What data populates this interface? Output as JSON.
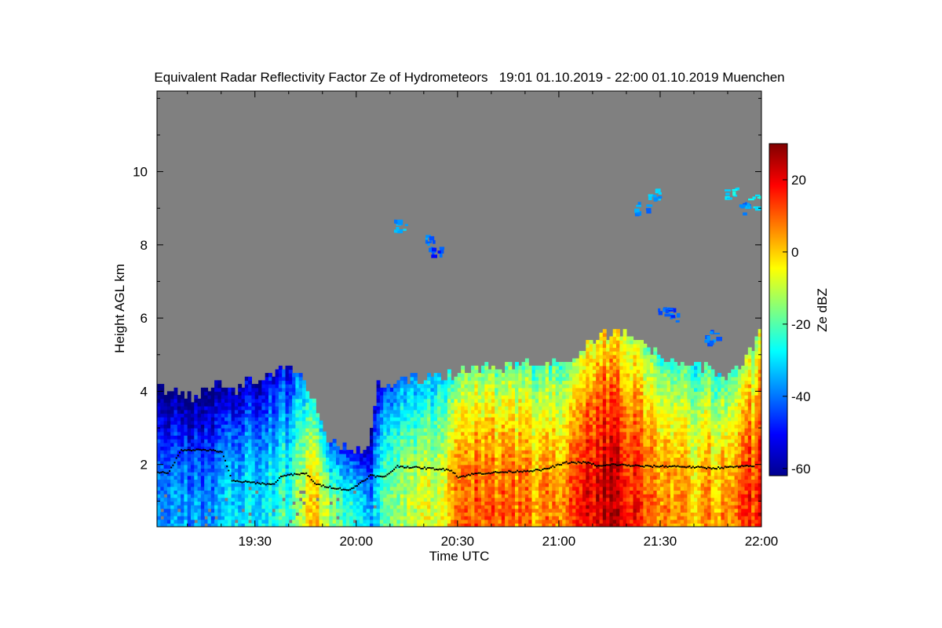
{
  "chart_data": {
    "type": "heatmap",
    "title": "Equivalent Radar Reflectivity Factor Ze of Hydrometeors   19:01 01.10.2019 - 22:00 01.10.2019 Muenchen",
    "xlabel": "Time UTC",
    "ylabel": "Height AGL km",
    "x_tick_labels": [
      "19:30",
      "20:00",
      "20:30",
      "21:00",
      "21:30",
      "22:00"
    ],
    "x_tick_minutes": [
      1170,
      1200,
      1230,
      1260,
      1290,
      1320
    ],
    "xlim_minutes": [
      1141,
      1320
    ],
    "y_ticks": [
      2,
      4,
      6,
      8,
      10
    ],
    "ylim": [
      0.3,
      12.2
    ],
    "grid": false,
    "missing_value_color": "#808080",
    "colorbar": {
      "label": "Ze dBZ",
      "ticks": [
        20,
        0,
        -20,
        -40,
        -60
      ],
      "range": [
        -62,
        30
      ],
      "colormap": "jet"
    },
    "echo_top_km": [
      {
        "t": 1141,
        "h": 4.1
      },
      {
        "t": 1150,
        "h": 3.8
      },
      {
        "t": 1158,
        "h": 4.1
      },
      {
        "t": 1165,
        "h": 4.0
      },
      {
        "t": 1172,
        "h": 4.4
      },
      {
        "t": 1180,
        "h": 4.5
      },
      {
        "t": 1184,
        "h": 4.4
      },
      {
        "t": 1188,
        "h": 3.5
      },
      {
        "t": 1192,
        "h": 2.6
      },
      {
        "t": 1200,
        "h": 2.3
      },
      {
        "t": 1204,
        "h": 2.5
      },
      {
        "t": 1206,
        "h": 4.1
      },
      {
        "t": 1210,
        "h": 4.2
      },
      {
        "t": 1220,
        "h": 4.3
      },
      {
        "t": 1232,
        "h": 4.5
      },
      {
        "t": 1245,
        "h": 4.6
      },
      {
        "t": 1255,
        "h": 4.7
      },
      {
        "t": 1264,
        "h": 4.7
      },
      {
        "t": 1270,
        "h": 5.4
      },
      {
        "t": 1278,
        "h": 5.6
      },
      {
        "t": 1286,
        "h": 5.2
      },
      {
        "t": 1294,
        "h": 4.8
      },
      {
        "t": 1302,
        "h": 4.6
      },
      {
        "t": 1310,
        "h": 4.4
      },
      {
        "t": 1316,
        "h": 4.9
      },
      {
        "t": 1320,
        "h": 5.8
      }
    ],
    "reflectivity_dbz_by_time": [
      {
        "t": 1141,
        "ze": -35
      },
      {
        "t": 1155,
        "ze": -38
      },
      {
        "t": 1165,
        "ze": -30
      },
      {
        "t": 1175,
        "ze": -25
      },
      {
        "t": 1180,
        "ze": -22
      },
      {
        "t": 1184,
        "ze": -8
      },
      {
        "t": 1187,
        "ze": 5
      },
      {
        "t": 1192,
        "ze": -15
      },
      {
        "t": 1200,
        "ze": -25
      },
      {
        "t": 1205,
        "ze": -35
      },
      {
        "t": 1210,
        "ze": -15
      },
      {
        "t": 1220,
        "ze": -10
      },
      {
        "t": 1228,
        "ze": 0
      },
      {
        "t": 1232,
        "ze": 12
      },
      {
        "t": 1245,
        "ze": 10
      },
      {
        "t": 1255,
        "ze": 5
      },
      {
        "t": 1262,
        "ze": 10
      },
      {
        "t": 1268,
        "ze": 20
      },
      {
        "t": 1275,
        "ze": 25
      },
      {
        "t": 1280,
        "ze": 20
      },
      {
        "t": 1290,
        "ze": 8
      },
      {
        "t": 1300,
        "ze": 2
      },
      {
        "t": 1310,
        "ze": 5
      },
      {
        "t": 1315,
        "ze": 12
      },
      {
        "t": 1320,
        "ze": 18
      }
    ],
    "cloud_base_km": [
      {
        "t": 1141,
        "h": 1.8
      },
      {
        "t": 1144,
        "h": 1.75
      },
      {
        "t": 1148,
        "h": 2.4
      },
      {
        "t": 1155,
        "h": 2.4
      },
      {
        "t": 1160,
        "h": 2.35
      },
      {
        "t": 1163,
        "h": 1.55
      },
      {
        "t": 1170,
        "h": 1.5
      },
      {
        "t": 1175,
        "h": 1.45
      },
      {
        "t": 1178,
        "h": 1.7
      },
      {
        "t": 1185,
        "h": 1.75
      },
      {
        "t": 1188,
        "h": 1.45
      },
      {
        "t": 1194,
        "h": 1.35
      },
      {
        "t": 1198,
        "h": 1.3
      },
      {
        "t": 1204,
        "h": 1.7
      },
      {
        "t": 1208,
        "h": 1.65
      },
      {
        "t": 1212,
        "h": 1.95
      },
      {
        "t": 1220,
        "h": 1.9
      },
      {
        "t": 1228,
        "h": 1.85
      },
      {
        "t": 1230,
        "h": 1.65
      },
      {
        "t": 1235,
        "h": 1.75
      },
      {
        "t": 1245,
        "h": 1.8
      },
      {
        "t": 1255,
        "h": 1.85
      },
      {
        "t": 1262,
        "h": 2.05
      },
      {
        "t": 1268,
        "h": 2.05
      },
      {
        "t": 1272,
        "h": 1.95
      },
      {
        "t": 1276,
        "h": 2.0
      },
      {
        "t": 1285,
        "h": 1.95
      },
      {
        "t": 1295,
        "h": 1.95
      },
      {
        "t": 1305,
        "h": 1.9
      },
      {
        "t": 1315,
        "h": 1.95
      }
    ],
    "upper_echoes": [
      {
        "t": 1213,
        "h": 8.55,
        "ze": -35
      },
      {
        "t": 1222,
        "h": 8.1,
        "ze": -40
      },
      {
        "t": 1223,
        "h": 7.9,
        "ze": -45
      },
      {
        "t": 1284,
        "h": 9.0,
        "ze": -38
      },
      {
        "t": 1288,
        "h": 9.4,
        "ze": -35
      },
      {
        "t": 1291,
        "h": 6.3,
        "ze": -40
      },
      {
        "t": 1293,
        "h": 6.1,
        "ze": -45
      },
      {
        "t": 1305,
        "h": 5.5,
        "ze": -40
      },
      {
        "t": 1311,
        "h": 9.4,
        "ze": -30
      },
      {
        "t": 1315,
        "h": 9.0,
        "ze": -38
      },
      {
        "t": 1318,
        "h": 9.2,
        "ze": -28
      }
    ]
  }
}
